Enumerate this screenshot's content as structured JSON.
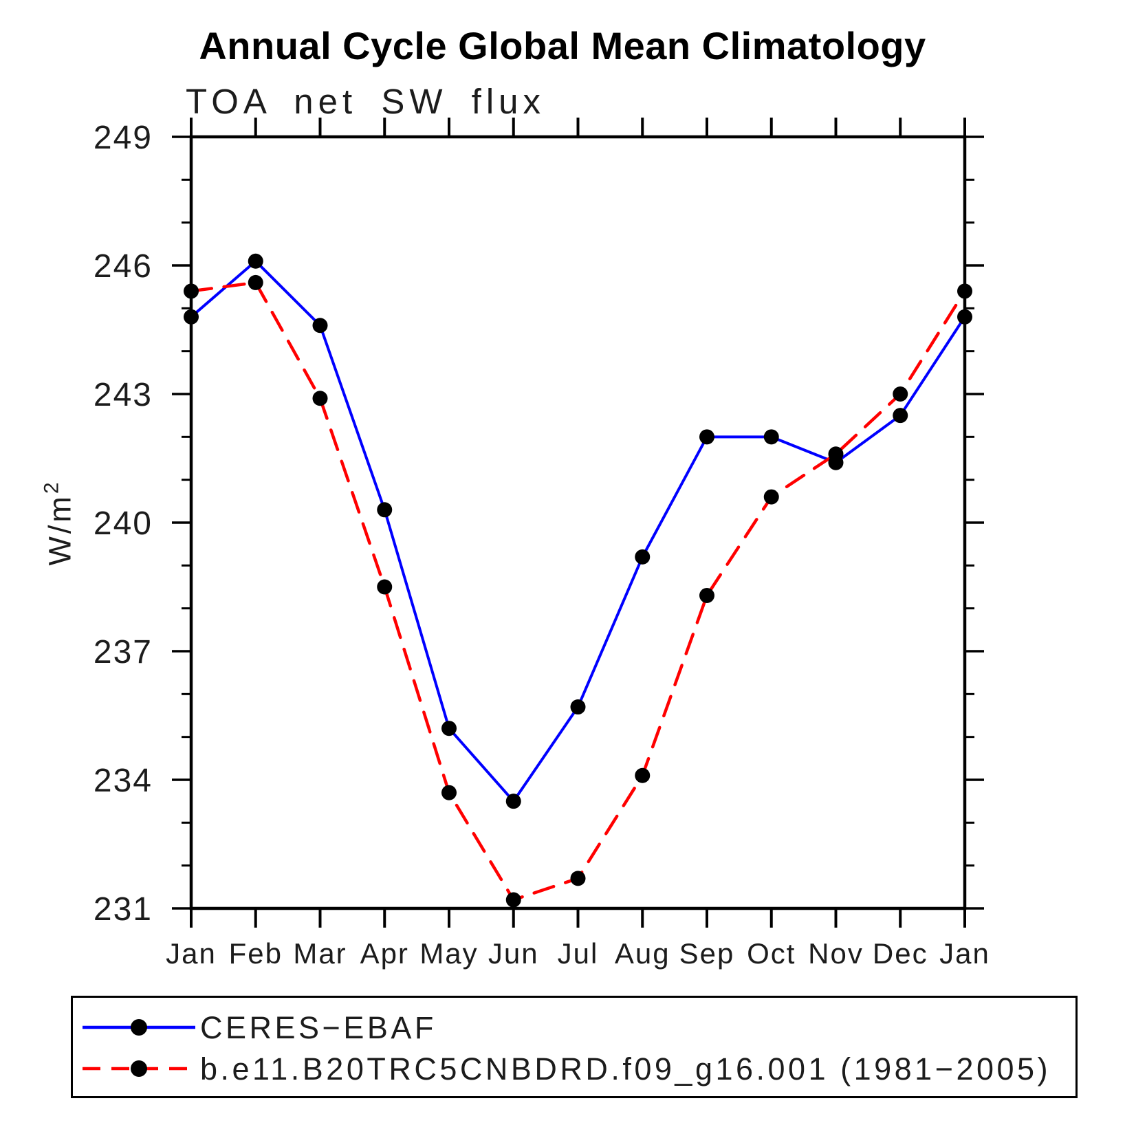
{
  "title": "Annual Cycle Global Mean Climatology",
  "subtitle": "TOA net SW flux",
  "ylabel": {
    "base": "W/m",
    "superscript": "2"
  },
  "legend": {
    "entries": [
      {
        "label": "CERES−EBAF",
        "color": "#0000ff",
        "style": "solid"
      },
      {
        "label": "b.e11.B20TRC5CNBDRD.f09_g16.001 (1981−2005)",
        "color": "#ff0000",
        "style": "dashed"
      }
    ]
  },
  "chart_data": {
    "type": "line",
    "title": "Annual Cycle Global Mean Climatology",
    "subtitle": "TOA net SW flux",
    "xlabel": "",
    "ylabel": "W/m²",
    "x_tick_labels": [
      "Jan",
      "Feb",
      "Mar",
      "Apr",
      "May",
      "Jun",
      "Jul",
      "Aug",
      "Sep",
      "Oct",
      "Nov",
      "Dec",
      "Jan"
    ],
    "ylim": [
      231,
      249
    ],
    "y_major_ticks": [
      231,
      234,
      237,
      240,
      243,
      246,
      249
    ],
    "y_minor_step": 1,
    "grid": false,
    "legend_position": "bottom",
    "frame_color": "#000000",
    "marker_color": "#000000",
    "series": [
      {
        "name": "CERES−EBAF",
        "color": "#0000ff",
        "line_style": "solid",
        "marker": "circle",
        "values": [
          244.8,
          246.1,
          244.6,
          240.3,
          235.2,
          233.5,
          235.7,
          239.2,
          242.0,
          242.0,
          241.4,
          242.5,
          244.8
        ]
      },
      {
        "name": "b.e11.B20TRC5CNBDRD.f09_g16.001 (1981−2005)",
        "color": "#ff0000",
        "line_style": "dashed",
        "marker": "circle",
        "values": [
          245.4,
          245.6,
          242.9,
          238.5,
          233.7,
          231.2,
          231.7,
          234.1,
          238.3,
          240.6,
          241.6,
          243.0,
          245.4
        ]
      }
    ]
  }
}
